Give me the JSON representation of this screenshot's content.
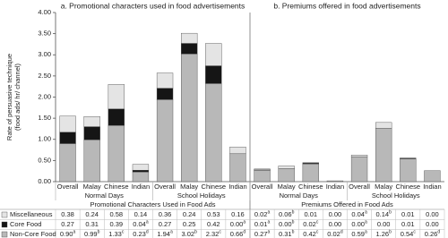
{
  "chart_data": {
    "type": "stacked-bar",
    "ylabel": [
      "Rate of persuasive technique",
      "(food ads/ hr/ channel)"
    ],
    "ylim": [
      0,
      4
    ],
    "yticks": [
      {
        "value": 0,
        "label": "0.00"
      },
      {
        "value": 0.5,
        "label": "0.50"
      },
      {
        "value": 1,
        "label": "1.00"
      },
      {
        "value": 1.5,
        "label": "1.50"
      },
      {
        "value": 2,
        "label": "2.00"
      },
      {
        "value": 2.5,
        "label": "2.50"
      },
      {
        "value": 3,
        "label": "3.00"
      },
      {
        "value": 3.5,
        "label": "3.50"
      },
      {
        "value": 4,
        "label": "4.00"
      }
    ],
    "panels": [
      {
        "title": "a. Promotional characters used in food advertisements",
        "table_title": "Promotional Characters Used in Food Ads"
      },
      {
        "title": "b. Premiums offered in food advertisements",
        "table_title": "Premiums Offered in Food Ads"
      }
    ],
    "groups": [
      "Normal Days",
      "School Holidays",
      "Normal Days",
      "School Holidays"
    ],
    "categories": [
      "Overall",
      "Malay",
      "Chinese",
      "Indian",
      "Overall",
      "Malay",
      "Chinese",
      "Indian",
      "Overall",
      "Malay",
      "Chinese",
      "Indian",
      "Overall",
      "Malay",
      "Chinese",
      "Indian"
    ],
    "series": [
      {
        "name": "Miscellaneous",
        "color": "#e4e4e4",
        "values": [
          0.38,
          0.24,
          0.58,
          0.14,
          0.36,
          0.24,
          0.53,
          0.16,
          0.02,
          0.06,
          0.01,
          0,
          0.04,
          0.14,
          0.01,
          0
        ],
        "value_labels": [
          "0.38",
          "0.24",
          "0.58",
          "0.14",
          "0.36",
          "0.24",
          "0.53",
          "0.16",
          "0.02",
          "0.06",
          "0.01",
          "0.00",
          "0.04",
          "0.14",
          "0.01",
          "0.00"
        ],
        "superscripts": [
          null,
          null,
          null,
          null,
          null,
          null,
          null,
          null,
          "a",
          "b",
          null,
          null,
          "a",
          "b",
          null,
          null
        ]
      },
      {
        "name": "Core Food",
        "color": "#151515",
        "values": [
          0.27,
          0.31,
          0.39,
          0.04,
          0.27,
          0.25,
          0.42,
          0,
          0.01,
          0,
          0.02,
          0,
          0,
          0,
          0.01,
          0
        ],
        "value_labels": [
          "0.27",
          "0.31",
          "0.39",
          "0.04",
          "0.27",
          "0.25",
          "0.42",
          "0.00",
          "0.01",
          "0.00",
          "0.02",
          "0.00",
          "0.00",
          "0.00",
          "0.01",
          "0.00"
        ],
        "superscripts": [
          null,
          null,
          null,
          "a",
          null,
          null,
          null,
          "a",
          "a",
          "b",
          "c",
          null,
          "a",
          null,
          null,
          null
        ]
      },
      {
        "name": "Non-Core Food",
        "color": "#b8b8b8",
        "values": [
          0.9,
          0.99,
          1.33,
          0.23,
          1.94,
          3.02,
          2.32,
          0.66,
          0.27,
          0.31,
          0.42,
          0.02,
          0.59,
          1.26,
          0.54,
          0.26
        ],
        "value_labels": [
          "0.90",
          "0.99",
          "1.33",
          "0.23",
          "1.94",
          "3.02",
          "2.32",
          "0.66",
          "0.27",
          "0.31",
          "0.42",
          "0.02",
          "0.59",
          "1.26",
          "0.54",
          "0.26"
        ],
        "superscripts": [
          "a",
          "b",
          "c",
          "d",
          "a",
          "b",
          "c",
          "d",
          "a",
          "b",
          "c",
          "d",
          "a",
          "b",
          "c",
          "d"
        ]
      }
    ]
  }
}
